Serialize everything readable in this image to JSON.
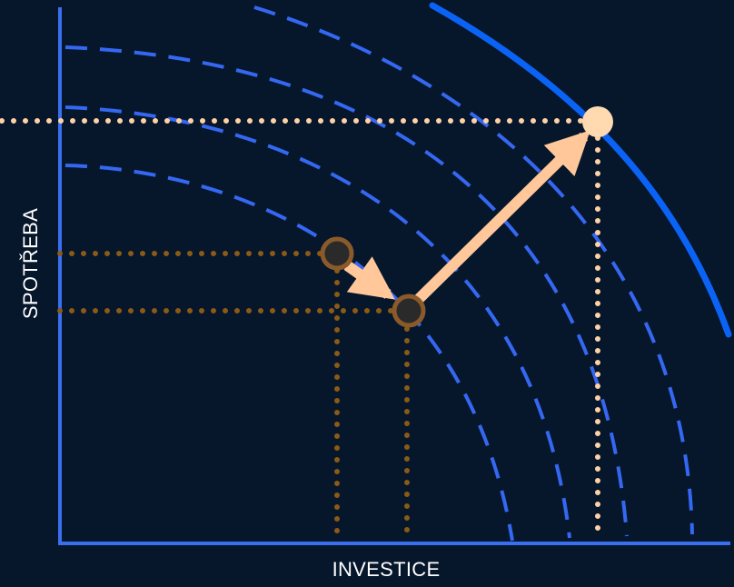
{
  "axes": {
    "x_label": "INVESTICE",
    "y_label": "SPOTŘEBA"
  },
  "colors": {
    "background": "#06162b",
    "axis": "#3a6ff0",
    "frontier_solid": "#0b63f5",
    "frontier_dashed": "#3568f2",
    "point_start": "#2a2a2a",
    "point_ring": "#8a5a2b",
    "point_end": "#ffd9b0",
    "guide_dark": "#8a5a16",
    "guide_light": "#ffd2a6",
    "arrow": "#ffc79a"
  }
}
